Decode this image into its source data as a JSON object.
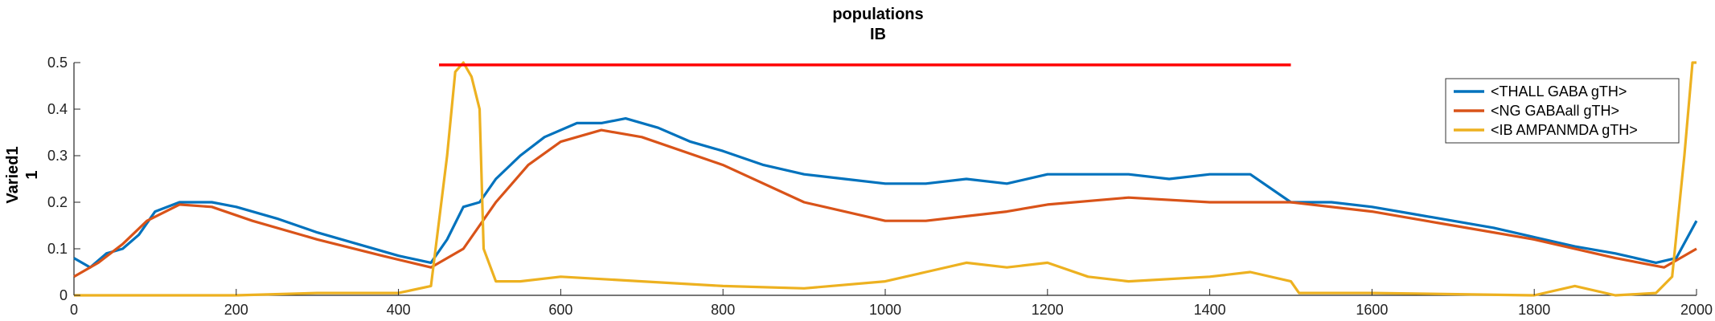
{
  "chart_data": {
    "type": "line",
    "title_lines": [
      "populations",
      "IB"
    ],
    "ylabel_lines": [
      "Varied1",
      "1"
    ],
    "xlabel": "",
    "xlim": [
      0,
      2000
    ],
    "ylim": [
      0,
      0.5
    ],
    "xticks": [
      0,
      200,
      400,
      600,
      800,
      1000,
      1200,
      1400,
      1600,
      1800,
      2000
    ],
    "yticks": [
      0,
      0.1,
      0.2,
      0.3,
      0.4,
      0.5
    ],
    "legend_position": "top-right",
    "grid": false,
    "stimulus_bar": {
      "x": [
        450,
        1500
      ],
      "y": 0.495,
      "color": "#ff0000"
    },
    "series": [
      {
        "name": "<THALL GABA gTH>",
        "color": "#0072bd",
        "points": [
          [
            0,
            0.08
          ],
          [
            20,
            0.06
          ],
          [
            40,
            0.09
          ],
          [
            60,
            0.1
          ],
          [
            80,
            0.13
          ],
          [
            100,
            0.18
          ],
          [
            130,
            0.2
          ],
          [
            170,
            0.2
          ],
          [
            200,
            0.19
          ],
          [
            250,
            0.165
          ],
          [
            300,
            0.135
          ],
          [
            350,
            0.11
          ],
          [
            400,
            0.085
          ],
          [
            440,
            0.07
          ],
          [
            460,
            0.12
          ],
          [
            480,
            0.19
          ],
          [
            500,
            0.2
          ],
          [
            520,
            0.25
          ],
          [
            550,
            0.3
          ],
          [
            580,
            0.34
          ],
          [
            620,
            0.37
          ],
          [
            650,
            0.37
          ],
          [
            680,
            0.38
          ],
          [
            720,
            0.36
          ],
          [
            760,
            0.33
          ],
          [
            800,
            0.31
          ],
          [
            850,
            0.28
          ],
          [
            900,
            0.26
          ],
          [
            950,
            0.25
          ],
          [
            1000,
            0.24
          ],
          [
            1050,
            0.24
          ],
          [
            1100,
            0.25
          ],
          [
            1150,
            0.24
          ],
          [
            1200,
            0.26
          ],
          [
            1250,
            0.26
          ],
          [
            1300,
            0.26
          ],
          [
            1350,
            0.25
          ],
          [
            1400,
            0.26
          ],
          [
            1450,
            0.26
          ],
          [
            1500,
            0.2
          ],
          [
            1550,
            0.2
          ],
          [
            1600,
            0.19
          ],
          [
            1650,
            0.175
          ],
          [
            1700,
            0.16
          ],
          [
            1750,
            0.145
          ],
          [
            1800,
            0.125
          ],
          [
            1850,
            0.105
          ],
          [
            1900,
            0.09
          ],
          [
            1950,
            0.07
          ],
          [
            1975,
            0.08
          ],
          [
            2000,
            0.16
          ]
        ]
      },
      {
        "name": "<NG GABAall gTH>",
        "color": "#d95319",
        "points": [
          [
            0,
            0.04
          ],
          [
            30,
            0.07
          ],
          [
            60,
            0.11
          ],
          [
            90,
            0.16
          ],
          [
            130,
            0.195
          ],
          [
            170,
            0.19
          ],
          [
            220,
            0.16
          ],
          [
            300,
            0.12
          ],
          [
            380,
            0.085
          ],
          [
            440,
            0.06
          ],
          [
            480,
            0.1
          ],
          [
            520,
            0.2
          ],
          [
            560,
            0.28
          ],
          [
            600,
            0.33
          ],
          [
            650,
            0.355
          ],
          [
            700,
            0.34
          ],
          [
            800,
            0.28
          ],
          [
            900,
            0.2
          ],
          [
            1000,
            0.16
          ],
          [
            1050,
            0.16
          ],
          [
            1100,
            0.17
          ],
          [
            1150,
            0.18
          ],
          [
            1200,
            0.195
          ],
          [
            1300,
            0.21
          ],
          [
            1400,
            0.2
          ],
          [
            1500,
            0.2
          ],
          [
            1600,
            0.18
          ],
          [
            1700,
            0.15
          ],
          [
            1800,
            0.12
          ],
          [
            1900,
            0.08
          ],
          [
            1960,
            0.06
          ],
          [
            2000,
            0.1
          ]
        ]
      },
      {
        "name": "<IB AMPANMDA gTH>",
        "color": "#edb120",
        "points": [
          [
            0,
            0.0
          ],
          [
            100,
            0.0
          ],
          [
            200,
            0.0
          ],
          [
            300,
            0.005
          ],
          [
            400,
            0.005
          ],
          [
            440,
            0.02
          ],
          [
            460,
            0.3
          ],
          [
            470,
            0.48
          ],
          [
            480,
            0.5
          ],
          [
            490,
            0.47
          ],
          [
            500,
            0.4
          ],
          [
            505,
            0.1
          ],
          [
            520,
            0.03
          ],
          [
            550,
            0.03
          ],
          [
            600,
            0.04
          ],
          [
            700,
            0.03
          ],
          [
            800,
            0.02
          ],
          [
            900,
            0.015
          ],
          [
            1000,
            0.03
          ],
          [
            1050,
            0.05
          ],
          [
            1100,
            0.07
          ],
          [
            1150,
            0.06
          ],
          [
            1200,
            0.07
          ],
          [
            1250,
            0.04
          ],
          [
            1300,
            0.03
          ],
          [
            1400,
            0.04
          ],
          [
            1450,
            0.05
          ],
          [
            1500,
            0.03
          ],
          [
            1510,
            0.005
          ],
          [
            1600,
            0.005
          ],
          [
            1800,
            0.0
          ],
          [
            1850,
            0.02
          ],
          [
            1900,
            0.0
          ],
          [
            1950,
            0.005
          ],
          [
            1970,
            0.04
          ],
          [
            1985,
            0.3
          ],
          [
            1995,
            0.5
          ],
          [
            2000,
            0.5
          ]
        ]
      }
    ]
  }
}
